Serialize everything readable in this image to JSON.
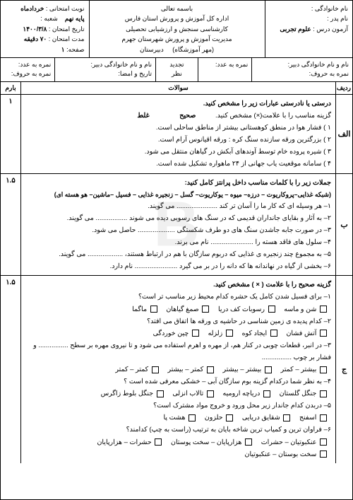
{
  "header": {
    "bismillah": "باسمه تعالی",
    "org1": "اداره کل آموزش و پرورش استان فارس",
    "org2": "کارشناسی سنجش و ارزشیابی تحصیلی",
    "org3": "مدیریت آموزش و پرورش شهرستان جهرم",
    "school": "دبیرستان",
    "stamp": "(مهر آموزشگاه)",
    "name_label": "نام خانوادگی :",
    "father_label": "نام پدر :",
    "exam_label": "آزمون درس :",
    "exam_value": "علوم تجربی",
    "period_label": "نوبت امتحانی :",
    "period_value": "خردادماه",
    "grade_label": "پایه نهم",
    "branch_label": "شعبه :",
    "date_label": "تاریخ امتحان :",
    "date_value": "۱۴۰۰/۳/۸",
    "duration_label": "مدت امتحان :",
    "duration_value": "۷۰ دقیقه",
    "page_label": "صفحه:",
    "page_value": "۱"
  },
  "sub": {
    "teacher1": "نام و نام خانوادگی دبیر:",
    "score_num": "نمره به عدد:",
    "score_word": "نمره به حروف:",
    "tajdid": "تجدید\nنظر",
    "teacher2": "نام و نام خانوادگی دبیر:",
    "date_sig": "تاریخ و امضا:"
  },
  "thead": {
    "radef": "ردیف",
    "q": "سوالات",
    "score": "بارم"
  },
  "qA": {
    "letter": "الف",
    "score": "۱",
    "title": "درستی یا نادرستی عبارات زیر را مشخص کنید.",
    "sub": "گزینه مناسب را با علامت(×) مشخص کنید.",
    "correct": "صحیح",
    "wrong": "غلط",
    "i1": "۱ ) فشار هوا در منطق کوهستانی بیشتر از مناطق ساحلی است.",
    "i2": "۲ ) بزرگترین ورقه سازنده سنگ کره : ورقه اقیانوس آرام است.",
    "i3": "۳ ) شیره پروده خام توسط آوندهای آبکش در گیاهان منتقل می شود.",
    "i4": "۴ ) سامانه موقعیت یاب جهانی از ۲۴ ماهواره تشکیل شده است."
  },
  "qB": {
    "letter": "ب",
    "score": "۱.۵",
    "title": "جملات زیر را با کلمات مناسب داخل پرانتز کامل کنید:",
    "choices": "(شبکه غذایی–پروکاریوت – درزه– میوه – یوکاریوت– گسل – زنجیره غذایی – فسیل –ماشین– هو هسته ای)",
    "i1": "۱– هر وسیله ای که کار ما را آسان تر کند ...................... می گویند.",
    "i2": "۲– به آثار و بقایای جانداران قدیمی که در سنگ های رسوبی دیده می شوند ................. می گویند.",
    "i3": "۳– در صورت جابه جاشدن سنگ های دو طرف شکستگی .................... حاصل می شود.",
    "i4": "۴– سلول های فاقد هسته را ....................... نام می برند.",
    "i5": "۵– به مجموع چند زنجیره ی غذایی که دربوم سازگان با هم در ارتباط هستند، ................... می گویند.",
    "i6": "۶– بخشی از گیاه در نهاندانه ها که دانه را در بر می گیرد ....................... نام دارد."
  },
  "qC": {
    "letter": "ج",
    "score": "۱.۵",
    "title": "گزینه صحیح را با علامت ( × ) مشخص کنید.",
    "q1": "۱– برای فسیل شدن کامل یک حشره کدام محیط زیر مناسب تر است؟",
    "q1o": [
      "شن و ماسه",
      "رسوبات کف دریا",
      "صمغ گیاهان",
      "ماگما"
    ],
    "q2": "۲– کدام پدیده ی زمین شناسی در حاشیه ی ورقه ها اتفاق می افتد؟",
    "q2o": [
      "آتش فشان",
      "ایجاد کوه",
      "زلزله",
      "چین خوردگی"
    ],
    "q3": "۳– در انبر، قطعات چوبی در کنار هم، از مهره و اهرم استفاده می شود و تا نیروی مهره بر سطح ................ و فشار بر چوب ................",
    "q3o": [
      "بیشتر – کمتر",
      "بیشتر – بیشتر",
      "کمتر – بیشتر",
      "کمتر – کمتر"
    ],
    "q4": "۴– به نظر شما درکدام گزینه بوم سازگان آبی – خشکی معرفی شده است ؟",
    "q4o": [
      "جنگل گلستان",
      "دریاچه ارومیه",
      "تالاب انزلی",
      "جنگل بلوط زاگرس"
    ],
    "q5": "۵– دربدن کدام جاندار زیر محل ورود و خروج مواد مشترک است؟",
    "q5o": [
      "اسفنج",
      "شقایق دریایی",
      "حلزون",
      "هشت پا"
    ],
    "q6": "۶– فراوان ترین و کمیاب ترین شاخه بایان به ترتیب (راست به چپ) کدامند؟",
    "q6o": [
      "عنکبوتیان – حشرات",
      "هزارپایان – سخت پوستان",
      "حشرات – هزارپایان",
      "سخت بوستان – عنکبوتیان"
    ]
  }
}
